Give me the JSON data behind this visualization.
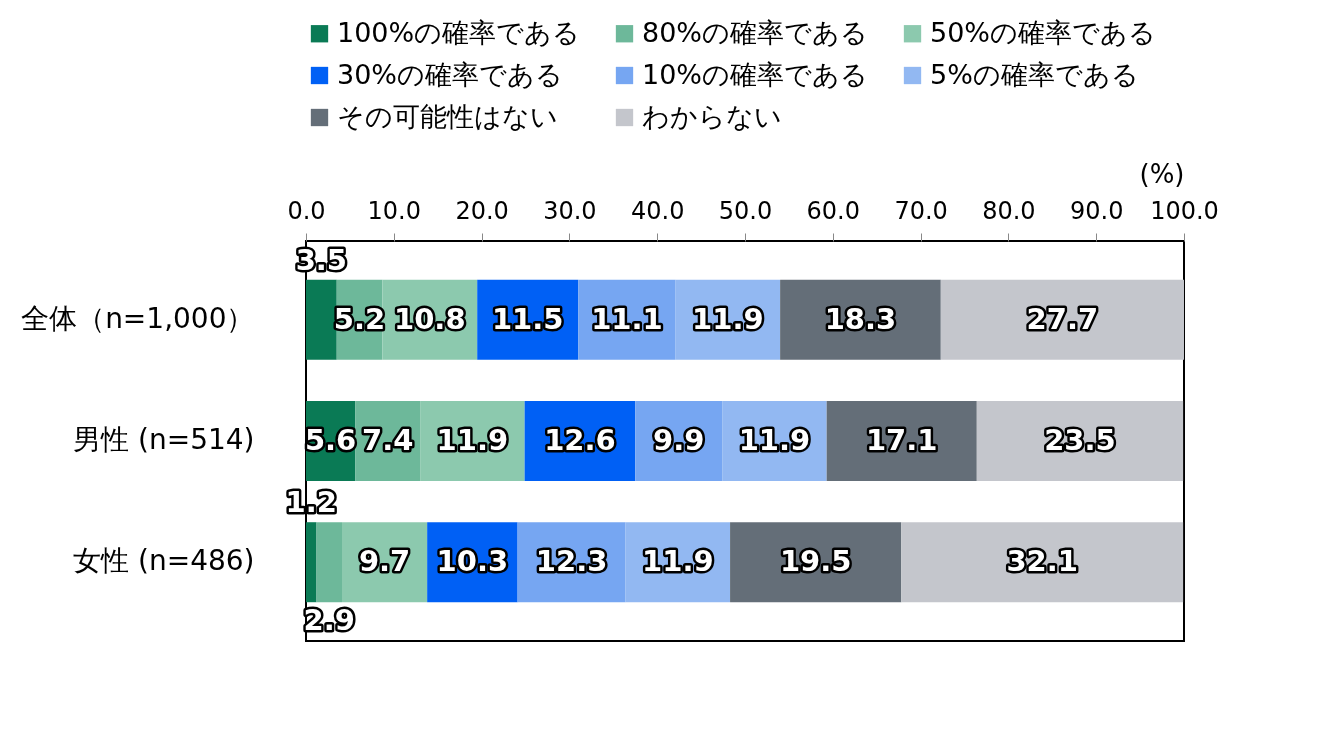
{
  "chart_data": {
    "type": "bar",
    "orientation": "horizontal",
    "stacked": true,
    "xlabel": "(%)",
    "categories": [
      "全体（n=1,000）",
      "男性 (n=514)",
      "女性 (n=486)"
    ],
    "series": [
      {
        "name": "100%の確率である",
        "color": "#0a7a55",
        "values": [
          3.5,
          5.6,
          1.2
        ]
      },
      {
        "name": "80%の確率である",
        "color": "#6db89a",
        "values": [
          5.2,
          7.4,
          2.9
        ]
      },
      {
        "name": "50%の確率である",
        "color": "#8cc9ae",
        "values": [
          10.8,
          11.9,
          9.7
        ]
      },
      {
        "name": "30%の確率である",
        "color": "#0060f5",
        "values": [
          11.5,
          12.6,
          10.3
        ]
      },
      {
        "name": "10%の確率である",
        "color": "#76a6f2",
        "values": [
          11.1,
          9.9,
          12.3
        ]
      },
      {
        "name": "5%の確率である",
        "color": "#92b8f2",
        "values": [
          11.9,
          11.9,
          11.9
        ]
      },
      {
        "name": "その可能性はない",
        "color": "#646e78",
        "values": [
          18.3,
          17.1,
          19.5
        ]
      },
      {
        "name": "わからない",
        "color": "#c4c6cc",
        "values": [
          27.7,
          23.5,
          32.1
        ]
      }
    ],
    "xlim": [
      0,
      100
    ],
    "xticks": [
      {
        "value": 0,
        "label": "0.0"
      },
      {
        "value": 10,
        "label": "10.0"
      },
      {
        "value": 20,
        "label": "20.0"
      },
      {
        "value": 30,
        "label": "30.0"
      },
      {
        "value": 40,
        "label": "40.0"
      },
      {
        "value": 50,
        "label": "50.0"
      },
      {
        "value": 60,
        "label": "60.0"
      },
      {
        "value": 70,
        "label": "70.0"
      },
      {
        "value": 80,
        "label": "80.0"
      },
      {
        "value": 90,
        "label": "90.0"
      },
      {
        "value": 100,
        "label": "100.0"
      }
    ],
    "grid": false,
    "legend": "top",
    "data_labels": true
  }
}
